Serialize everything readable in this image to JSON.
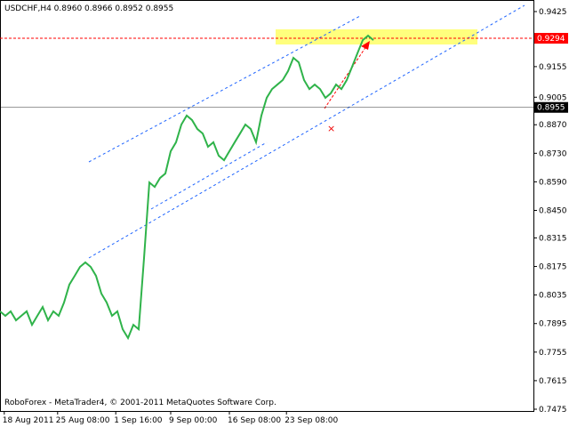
{
  "chart_data": {
    "type": "line",
    "title": "USDCHF,H4  0.8960 0.8966 0.8952 0.8955",
    "footer": "RoboForex - MetaTrader4, © 2001-2011 MetaQuotes Software Corp.",
    "series": [
      {
        "name": "USDCHF",
        "color": "#2fb34a",
        "values": [
          0.7955,
          0.7933,
          0.7955,
          0.7911,
          0.7933,
          0.7955,
          0.7889,
          0.7933,
          0.7976,
          0.7911,
          0.7955,
          0.7933,
          0.7998,
          0.8086,
          0.8129,
          0.8173,
          0.8195,
          0.8173,
          0.8129,
          0.8042,
          0.7998,
          0.7933,
          0.7955,
          0.7867,
          0.7824,
          0.7889,
          0.7867,
          0.8216,
          0.8587,
          0.8565,
          0.8609,
          0.8631,
          0.874,
          0.8784,
          0.8871,
          0.8915,
          0.8893,
          0.8849,
          0.8827,
          0.8762,
          0.8784,
          0.8718,
          0.8696,
          0.874,
          0.8784,
          0.8827,
          0.8871,
          0.8849,
          0.8784,
          0.8915,
          0.9002,
          0.9045,
          0.9067,
          0.9089,
          0.9133,
          0.9198,
          0.9176,
          0.9089,
          0.9045,
          0.9067,
          0.9045,
          0.9002,
          0.9024,
          0.9067,
          0.9045,
          0.9089,
          0.9154,
          0.922,
          0.9285,
          0.9307,
          0.9285
        ]
      }
    ],
    "xlim": [
      0,
      100
    ],
    "xticks": [
      {
        "value": 0.8,
        "label": "18 Aug 2011"
      },
      {
        "value": 10.8,
        "label": "25 Aug 08:00"
      },
      {
        "value": 21.7,
        "label": "1 Sep 16:00"
      },
      {
        "value": 32,
        "label": "9 Sep 00:00"
      },
      {
        "value": 43,
        "label": "16 Sep 08:00"
      },
      {
        "value": 53.7,
        "label": "23 Sep 08:00"
      }
    ],
    "ylim": [
      0.7475,
      0.9425
    ],
    "yticks": [
      0.9425,
      0.9155,
      0.9005,
      {
        "value": 0.887,
        "label": "0.8870"
      },
      {
        "value": 0.873,
        "label": "0.8730"
      },
      {
        "value": 0.859,
        "label": "0.8590"
      },
      {
        "value": 0.845,
        "label": "0.8450"
      },
      0.8315,
      0.8175,
      0.8035,
      0.7895,
      0.7755,
      0.7615,
      0.7475
    ],
    "levels": [
      {
        "value": 0.9294,
        "color": "#ff0000"
      },
      {
        "value": 0.8955,
        "color": "#000000"
      }
    ]
  }
}
